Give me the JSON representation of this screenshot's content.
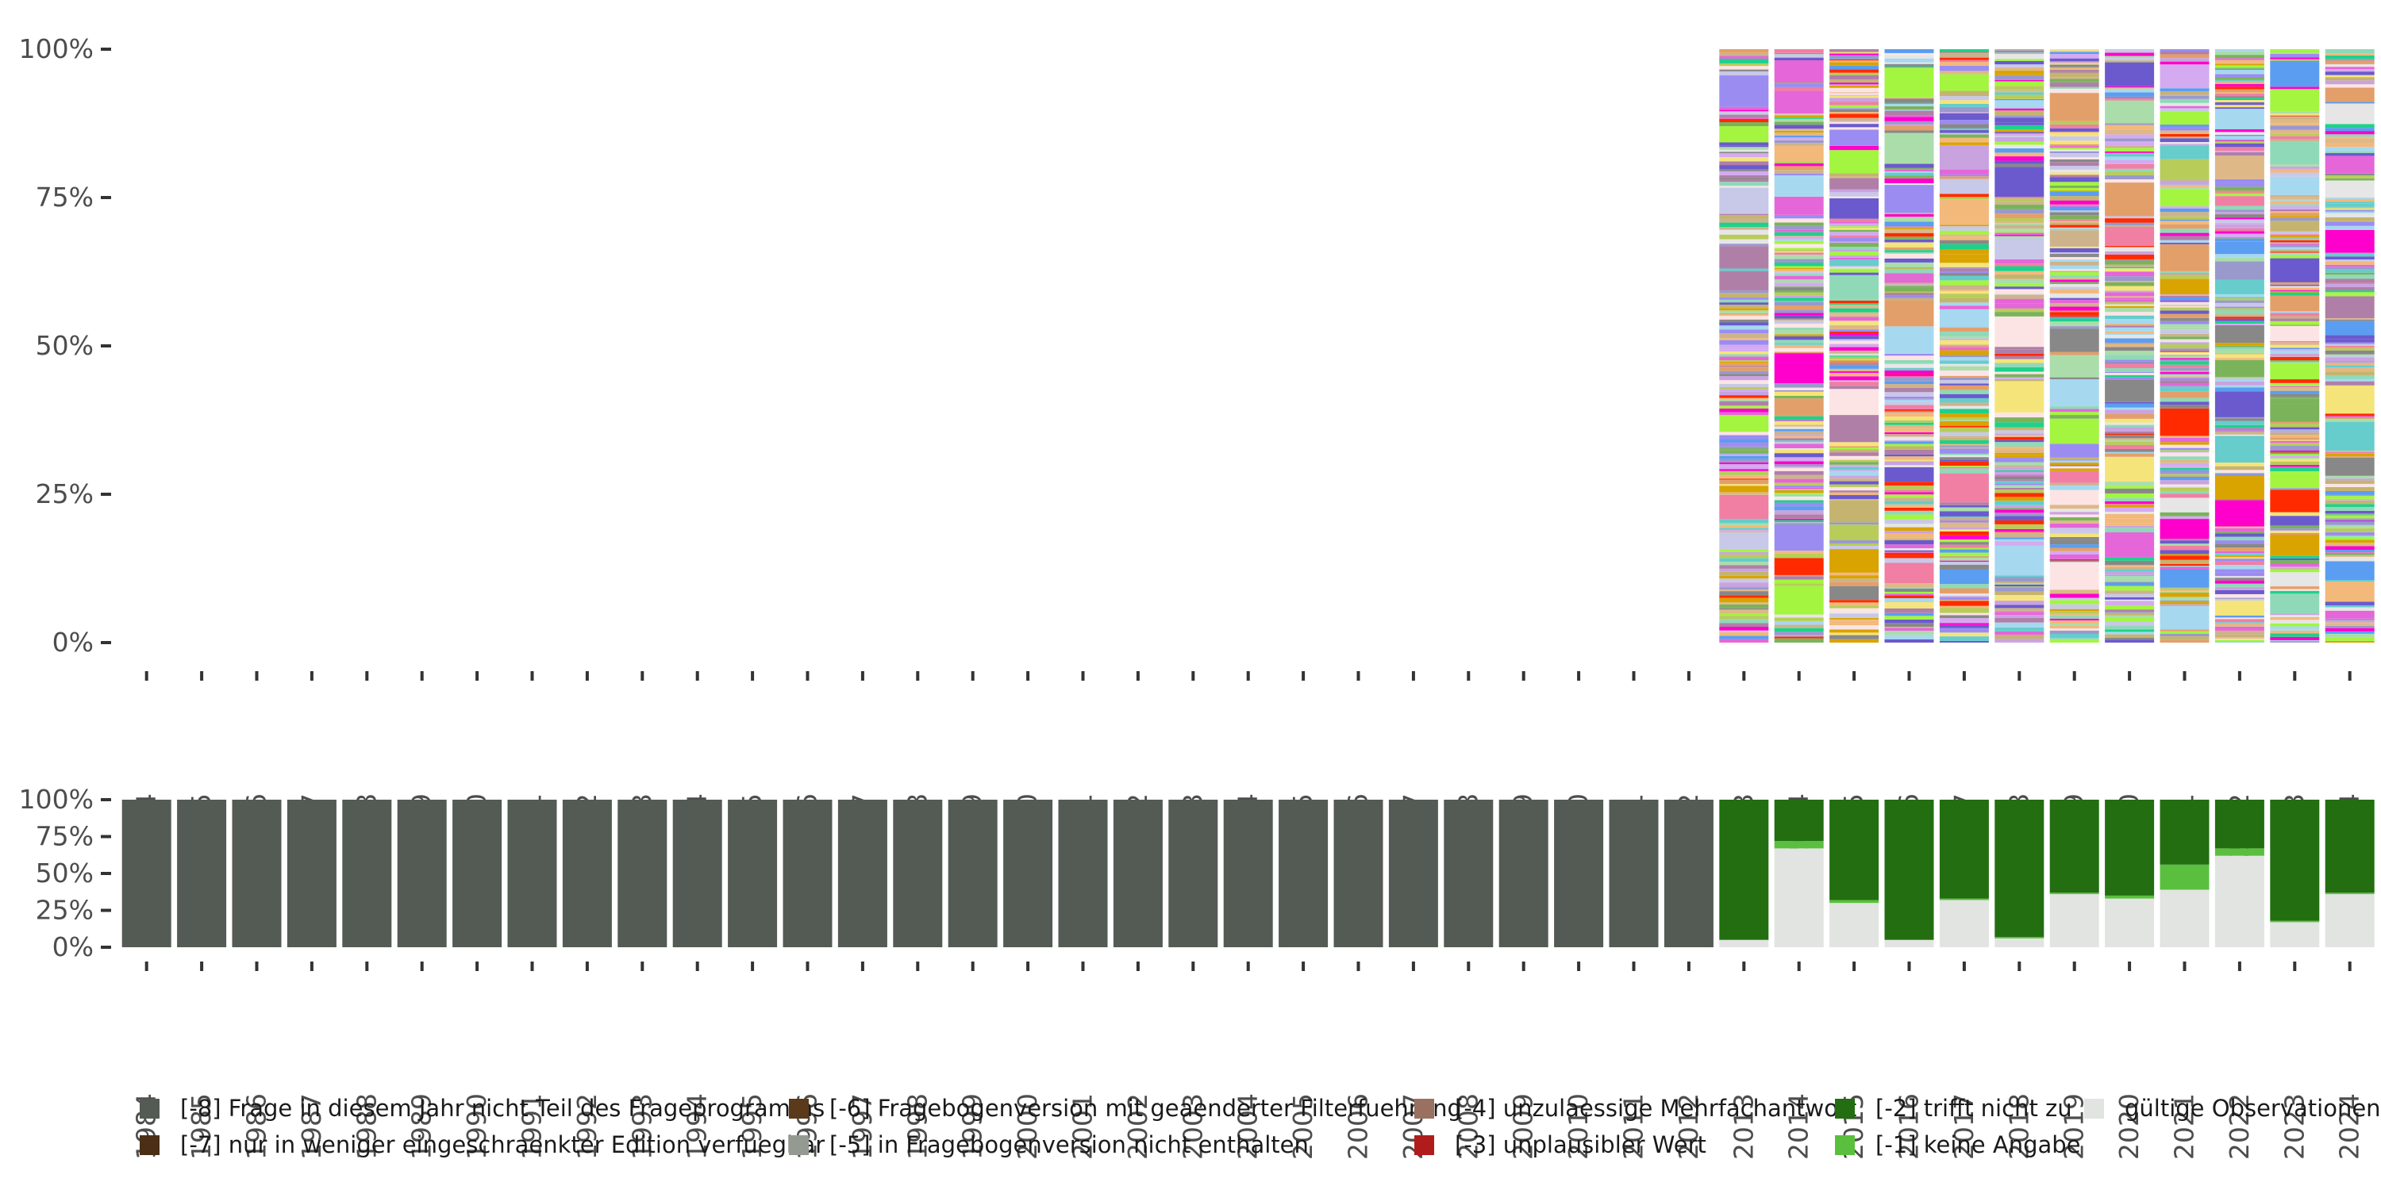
{
  "chart_data": [
    {
      "type": "bar",
      "stacked": true,
      "description_note": "top panel: 100% stacked distribution of many valid response values; only present 2013-2024",
      "x": [
        "1984",
        "1985",
        "1986",
        "1987",
        "1988",
        "1989",
        "1990",
        "1991",
        "1992",
        "1993",
        "1994",
        "1995",
        "1996",
        "1997",
        "1998",
        "1999",
        "2000",
        "2001",
        "2002",
        "2003",
        "2004",
        "2005",
        "2006",
        "2007",
        "2008",
        "2009",
        "2010",
        "2011",
        "2012",
        "2013",
        "2014",
        "2015",
        "2016",
        "2017",
        "2018",
        "2019",
        "2020",
        "2021",
        "2022",
        "2023",
        "2024"
      ],
      "present_years": [
        "2013",
        "2014",
        "2015",
        "2016",
        "2017",
        "2018",
        "2019",
        "2020",
        "2021",
        "2022",
        "2023",
        "2024"
      ],
      "y_ticks": [
        "0%",
        "25%",
        "50%",
        "75%",
        "100%"
      ],
      "ylim": [
        0,
        1
      ],
      "palette": [
        "#b8cc5a",
        "#f2b97b",
        "#9b8cf2",
        "#a3f540",
        "#c8c8e8",
        "#fde4e4",
        "#e39f6a",
        "#5b9df0",
        "#e566d8",
        "#8fd9b8",
        "#c4b470",
        "#f5e47a",
        "#d4aaf0",
        "#66cccc",
        "#b07fa8",
        "#a6d8f0",
        "#e6e6e6",
        "#7ab35a",
        "#f07fa3",
        "#9999cc",
        "#c9a3e0",
        "#ff2a00",
        "#1ed18a",
        "#d9a300",
        "#888888",
        "#ff00cc",
        "#ccb38c",
        "#aaddaa",
        "#6a5acd",
        "#deb887"
      ]
    },
    {
      "type": "bar",
      "stacked": true,
      "x": [
        "1984",
        "1985",
        "1986",
        "1987",
        "1988",
        "1989",
        "1990",
        "1991",
        "1992",
        "1993",
        "1994",
        "1995",
        "1996",
        "1997",
        "1998",
        "1999",
        "2000",
        "2001",
        "2002",
        "2003",
        "2004",
        "2005",
        "2006",
        "2007",
        "2008",
        "2009",
        "2010",
        "2011",
        "2012",
        "2013",
        "2014",
        "2015",
        "2016",
        "2017",
        "2018",
        "2019",
        "2020",
        "2021",
        "2022",
        "2023",
        "2024"
      ],
      "y_ticks": [
        "0%",
        "25%",
        "50%",
        "75%",
        "100%"
      ],
      "ylim": [
        0,
        1
      ],
      "series": [
        {
          "name": "gültige Observationen",
          "color": "#e1e4e0",
          "values": [
            0,
            0,
            0,
            0,
            0,
            0,
            0,
            0,
            0,
            0,
            0,
            0,
            0,
            0,
            0,
            0,
            0,
            0,
            0,
            0,
            0,
            0,
            0,
            0,
            0,
            0,
            0,
            0,
            0,
            0.05,
            0.67,
            0.3,
            0.05,
            0.32,
            0.06,
            0.36,
            0.33,
            0.39,
            0.62,
            0.17,
            0.36
          ]
        },
        {
          "name": "[-1] keine Angabe",
          "color": "#5abf3e",
          "values": [
            0,
            0,
            0,
            0,
            0,
            0,
            0,
            0,
            0,
            0,
            0,
            0,
            0,
            0,
            0,
            0,
            0,
            0,
            0,
            0,
            0,
            0,
            0,
            0,
            0,
            0,
            0,
            0,
            0,
            0.0,
            0.05,
            0.02,
            0.0,
            0.01,
            0.01,
            0.01,
            0.02,
            0.17,
            0.05,
            0.01,
            0.01
          ]
        },
        {
          "name": "[-2] trifft nicht zu",
          "color": "#226e10",
          "values": [
            0,
            0,
            0,
            0,
            0,
            0,
            0,
            0,
            0,
            0,
            0,
            0,
            0,
            0,
            0,
            0,
            0,
            0,
            0,
            0,
            0,
            0,
            0,
            0,
            0,
            0,
            0,
            0,
            0,
            0.95,
            0.28,
            0.68,
            0.95,
            0.67,
            0.93,
            0.63,
            0.65,
            0.44,
            0.33,
            0.82,
            0.63
          ]
        },
        {
          "name": "[-8] Frage in diesem Jahr nicht Teil des Frageprogramms",
          "color": "#545a54",
          "values": [
            1,
            1,
            1,
            1,
            1,
            1,
            1,
            1,
            1,
            1,
            1,
            1,
            1,
            1,
            1,
            1,
            1,
            1,
            1,
            1,
            1,
            1,
            1,
            1,
            1,
            1,
            1,
            1,
            1,
            0,
            0,
            0,
            0,
            0,
            0,
            0,
            0,
            0,
            0,
            0,
            0
          ]
        }
      ]
    }
  ],
  "legend": [
    {
      "label": "[-8] Frage in diesem Jahr nicht Teil des Frageprogramms",
      "color": "#545a54"
    },
    {
      "label": "[-7] nur in weniger eingeschraenkter Edition verfuegbar",
      "color": "#4a2e16"
    },
    {
      "label": "[-6] Fragebogenversion mit geaenderter Filterfuehrung",
      "color": "#5a3a1a"
    },
    {
      "label": "[-5] in Fragebogenversion nicht enthalten",
      "color": "#949a92"
    },
    {
      "label": "[-4] unzulaessige Mehrfachantwort",
      "color": "#9a7060"
    },
    {
      "label": "[-3] unplausibler Wert",
      "color": "#b01c1c"
    },
    {
      "label": "[-2] trifft nicht zu",
      "color": "#226e10"
    },
    {
      "label": "[-1] keine Angabe",
      "color": "#5abf3e"
    },
    {
      "label": "gültige Observationen",
      "color": "#e1e4e0"
    }
  ]
}
